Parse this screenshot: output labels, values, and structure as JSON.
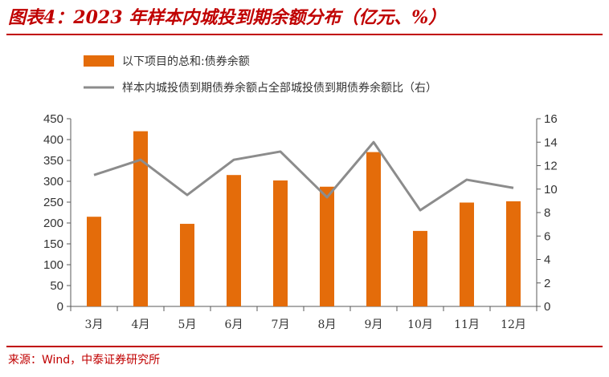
{
  "header": {
    "title": "图表4：2023 年样本内城投到期余额分布（亿元、%）"
  },
  "footer": {
    "source": "来源：Wind，中泰证券研究所"
  },
  "colors": {
    "bar": "#e46c0a",
    "line": "#8c8c8c",
    "accent": "#c00000",
    "axis": "#595959"
  },
  "chart_data": {
    "type": "bar",
    "title": "2023 年样本内城投到期余额分布（亿元、%）",
    "categories": [
      "3月",
      "4月",
      "5月",
      "6月",
      "7月",
      "8月",
      "9月",
      "10月",
      "11月",
      "12月"
    ],
    "series": [
      {
        "name": "以下项目的总和:债券余额",
        "type": "bar",
        "axis": "left",
        "values": [
          215,
          420,
          198,
          315,
          302,
          287,
          370,
          181,
          249,
          252
        ]
      },
      {
        "name": "样本内城投债到期债券余额占全部城投债到期债券余额比（右）",
        "type": "line",
        "axis": "right",
        "values": [
          11.2,
          12.5,
          9.5,
          12.5,
          13.2,
          9.3,
          14.0,
          8.2,
          10.8,
          10.1
        ]
      }
    ],
    "ylim": [
      0,
      450
    ],
    "yticks": [
      0,
      50,
      100,
      150,
      200,
      250,
      300,
      350,
      400,
      450
    ],
    "y2lim": [
      0,
      16
    ],
    "y2ticks": [
      0,
      2,
      4,
      6,
      8,
      10,
      12,
      14,
      16
    ],
    "legend": "top-left",
    "grid": false
  }
}
